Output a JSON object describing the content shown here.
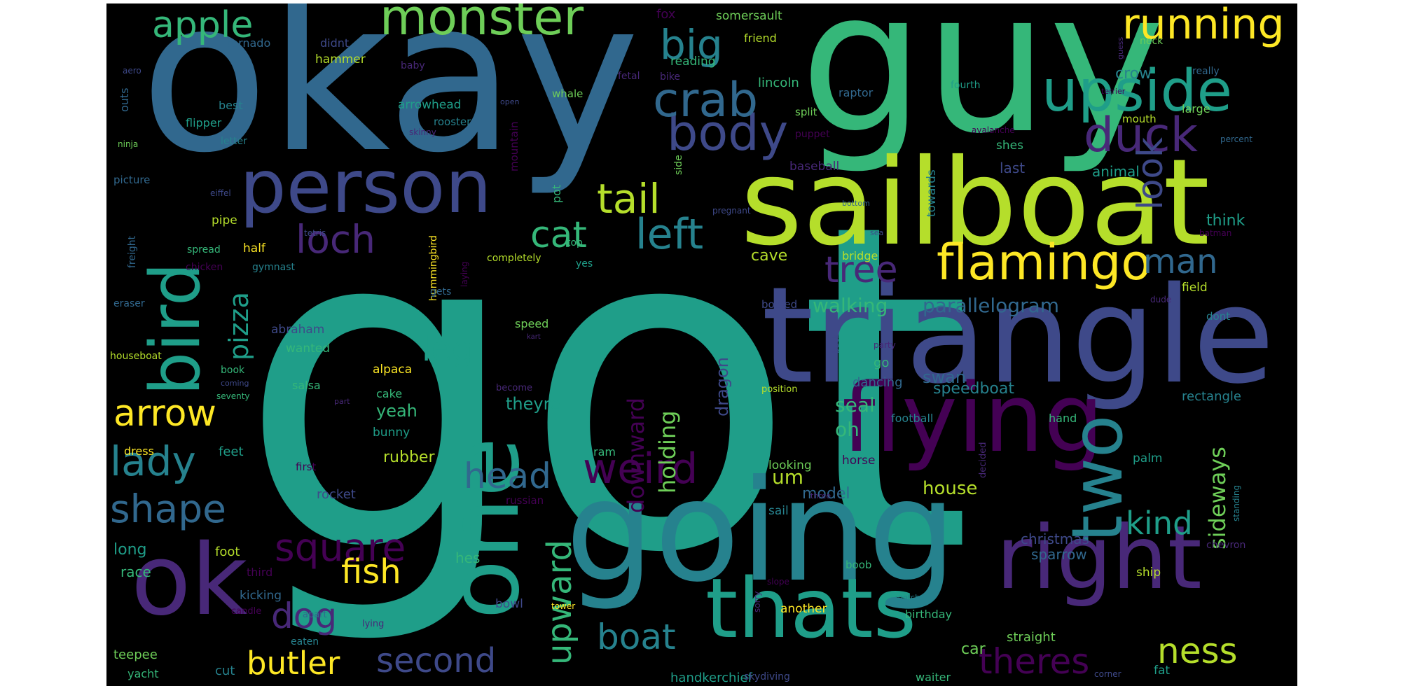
{
  "cloud": {
    "background": "#000000",
    "palette": [
      "#440154",
      "#482878",
      "#3e4989",
      "#31688e",
      "#26828e",
      "#1f9e89",
      "#35b779",
      "#6ece58",
      "#b5de2b",
      "#fde725"
    ],
    "words": [
      {
        "text": "got",
        "color": 5
      },
      {
        "text": "okay",
        "color": 3
      },
      {
        "text": "guy",
        "color": 6
      },
      {
        "text": "sailboat",
        "color": 8
      },
      {
        "text": "triangle",
        "color": 2
      },
      {
        "text": "going",
        "color": 4
      },
      {
        "text": "person",
        "color": 2
      },
      {
        "text": "flying",
        "color": 0
      },
      {
        "text": "thats",
        "color": 5
      },
      {
        "text": "right",
        "color": 1
      },
      {
        "text": "ok",
        "color": 1
      },
      {
        "text": "one",
        "color": 5
      },
      {
        "text": "two",
        "color": 4
      },
      {
        "text": "bird",
        "color": 5
      },
      {
        "text": "monster",
        "color": 7
      },
      {
        "text": "upside",
        "color": 5
      },
      {
        "text": "running",
        "color": 9
      },
      {
        "text": "flamingo",
        "color": 9
      },
      {
        "text": "body",
        "color": 2
      },
      {
        "text": "duck",
        "color": 1
      },
      {
        "text": "crab",
        "color": 3
      },
      {
        "text": "big",
        "color": 4
      },
      {
        "text": "apple",
        "color": 6
      },
      {
        "text": "look",
        "color": 2
      },
      {
        "text": "tail",
        "color": 8
      },
      {
        "text": "left",
        "color": 4
      },
      {
        "text": "cat",
        "color": 6
      },
      {
        "text": "loch",
        "color": 1
      },
      {
        "text": "tree",
        "color": 1
      },
      {
        "text": "man",
        "color": 3
      },
      {
        "text": "arrow",
        "color": 9
      },
      {
        "text": "lady",
        "color": 4
      },
      {
        "text": "shape",
        "color": 3
      },
      {
        "text": "square",
        "color": 0
      },
      {
        "text": "pizza",
        "color": 5
      },
      {
        "text": "weird",
        "color": 0
      },
      {
        "text": "head",
        "color": 3
      },
      {
        "text": "leg",
        "color": 5
      },
      {
        "text": "dog",
        "color": 1
      },
      {
        "text": "fish",
        "color": 9
      },
      {
        "text": "butler",
        "color": 9
      },
      {
        "text": "boat",
        "color": 4
      },
      {
        "text": "second",
        "color": 2
      },
      {
        "text": "theres",
        "color": 0
      },
      {
        "text": "ness",
        "color": 8
      },
      {
        "text": "kind",
        "color": 5
      },
      {
        "text": "sideways",
        "color": 7
      },
      {
        "text": "upward",
        "color": 6
      },
      {
        "text": "downward",
        "color": 0
      },
      {
        "text": "holding",
        "color": 7
      },
      {
        "text": "parallelogram",
        "color": 3
      },
      {
        "text": "walking",
        "color": 6
      },
      {
        "text": "seal",
        "color": 6
      },
      {
        "text": "oh",
        "color": 6
      },
      {
        "text": "um",
        "color": 8
      },
      {
        "text": "house",
        "color": 8
      },
      {
        "text": "model",
        "color": 3
      },
      {
        "text": "dragon",
        "color": 2
      },
      {
        "text": "speedboat",
        "color": 4
      },
      {
        "text": "car",
        "color": 7
      },
      {
        "text": "swan",
        "color": 3
      },
      {
        "text": "last",
        "color": 2
      },
      {
        "text": "animal",
        "color": 5
      },
      {
        "text": "crow",
        "color": 4
      },
      {
        "text": "think",
        "color": 5
      },
      {
        "text": "rectangle",
        "color": 4
      },
      {
        "text": "sparrow",
        "color": 3
      },
      {
        "text": "christmas",
        "color": 2
      },
      {
        "text": "straight",
        "color": 7
      },
      {
        "text": "handkerchief",
        "color": 5
      },
      {
        "text": "fox",
        "color": 0
      },
      {
        "text": "somersault",
        "color": 7
      },
      {
        "text": "raptor",
        "color": 3
      },
      {
        "text": "friend",
        "color": 8
      },
      {
        "text": "reading",
        "color": 6
      },
      {
        "text": "hammer",
        "color": 8
      },
      {
        "text": "didnt",
        "color": 2
      },
      {
        "text": "tornado",
        "color": 3
      },
      {
        "text": "baby",
        "color": 1
      },
      {
        "text": "fetal",
        "color": 1
      },
      {
        "text": "bike",
        "color": 1
      },
      {
        "text": "neck",
        "color": 7
      },
      {
        "text": "really",
        "color": 3
      },
      {
        "text": "guess",
        "color": 1
      },
      {
        "text": "lincoln",
        "color": 6
      },
      {
        "text": "split",
        "color": 7
      },
      {
        "text": "puppet",
        "color": 0
      },
      {
        "text": "whale",
        "color": 7
      },
      {
        "text": "arrowhead",
        "color": 5
      },
      {
        "text": "rooster",
        "color": 4
      },
      {
        "text": "open",
        "color": 2
      },
      {
        "text": "mountain",
        "color": 0
      },
      {
        "text": "fourth",
        "color": 5
      },
      {
        "text": "mouth",
        "color": 8
      },
      {
        "text": "large",
        "color": 7
      },
      {
        "text": "terrier",
        "color": 0
      },
      {
        "text": "percent",
        "color": 3
      },
      {
        "text": "avalanche",
        "color": 0
      },
      {
        "text": "shes",
        "color": 6
      },
      {
        "text": "towards",
        "color": 4
      },
      {
        "text": "baseball",
        "color": 1
      },
      {
        "text": "bottom",
        "color": 3
      },
      {
        "text": "pregnant",
        "color": 2
      },
      {
        "text": "pot",
        "color": 6
      },
      {
        "text": "side",
        "color": 7
      },
      {
        "text": "best",
        "color": 4
      },
      {
        "text": "flipper",
        "color": 5
      },
      {
        "text": "skinny",
        "color": 1
      },
      {
        "text": "letter",
        "color": 4
      },
      {
        "text": "ninja",
        "color": 7
      },
      {
        "text": "picture",
        "color": 3
      },
      {
        "text": "eiffel",
        "color": 2
      },
      {
        "text": "outs",
        "color": 3
      },
      {
        "text": "aero",
        "color": 2
      },
      {
        "text": "tetris",
        "color": 2
      },
      {
        "text": "pipe",
        "color": 8
      },
      {
        "text": "spread",
        "color": 6
      },
      {
        "text": "chicken",
        "color": 0
      },
      {
        "text": "gymnast",
        "color": 4
      },
      {
        "text": "half",
        "color": 9
      },
      {
        "text": "freight",
        "color": 3
      },
      {
        "text": "eraser",
        "color": 3
      },
      {
        "text": "hummingbird",
        "color": 9
      },
      {
        "text": "laying",
        "color": 0
      },
      {
        "text": "gets",
        "color": 3
      },
      {
        "text": "completely",
        "color": 8
      },
      {
        "text": "top",
        "color": 6
      },
      {
        "text": "yes",
        "color": 5
      },
      {
        "text": "abraham",
        "color": 2
      },
      {
        "text": "wanted",
        "color": 6
      },
      {
        "text": "speed",
        "color": 7
      },
      {
        "text": "kart",
        "color": 1
      },
      {
        "text": "houseboat",
        "color": 8
      },
      {
        "text": "alpaca",
        "color": 9
      },
      {
        "text": "book",
        "color": 6
      },
      {
        "text": "coming",
        "color": 2
      },
      {
        "text": "seventy",
        "color": 6
      },
      {
        "text": "cake",
        "color": 6
      },
      {
        "text": "become",
        "color": 1
      },
      {
        "text": "salsa",
        "color": 6
      },
      {
        "text": "part",
        "color": 1
      },
      {
        "text": "yeah",
        "color": 6
      },
      {
        "text": "theyre",
        "color": 5
      },
      {
        "text": "bunny",
        "color": 5
      },
      {
        "text": "dress",
        "color": 9
      },
      {
        "text": "feet",
        "color": 5
      },
      {
        "text": "rubber",
        "color": 8
      },
      {
        "text": "ram",
        "color": 6
      },
      {
        "text": "first",
        "color": 0
      },
      {
        "text": "rocket",
        "color": 2
      },
      {
        "text": "russian",
        "color": 0
      },
      {
        "text": "long",
        "color": 5
      },
      {
        "text": "foot",
        "color": 8
      },
      {
        "text": "race",
        "color": 6
      },
      {
        "text": "third",
        "color": 0
      },
      {
        "text": "hes",
        "color": 6
      },
      {
        "text": "bowl",
        "color": 2
      },
      {
        "text": "kicking",
        "color": 3
      },
      {
        "text": "candle",
        "color": 0
      },
      {
        "text": "apart",
        "color": 3
      },
      {
        "text": "lying",
        "color": 1
      },
      {
        "text": "eaten",
        "color": 4
      },
      {
        "text": "teepee",
        "color": 7
      },
      {
        "text": "yacht",
        "color": 6
      },
      {
        "text": "cut",
        "color": 4
      },
      {
        "text": "tower",
        "color": 9
      },
      {
        "text": "sorry",
        "color": 1
      },
      {
        "text": "skydiving",
        "color": 2
      },
      {
        "text": "waiter",
        "color": 6
      },
      {
        "text": "another",
        "color": 9
      },
      {
        "text": "birthday",
        "color": 6
      },
      {
        "text": "slope",
        "color": 0
      },
      {
        "text": "gotcha",
        "color": 4
      },
      {
        "text": "boob",
        "color": 6
      },
      {
        "text": "sail",
        "color": 4
      },
      {
        "text": "looking",
        "color": 7
      },
      {
        "text": "three",
        "color": 1
      },
      {
        "text": "decided",
        "color": 1
      },
      {
        "text": "standing",
        "color": 4
      },
      {
        "text": "palm",
        "color": 5
      },
      {
        "text": "fat",
        "color": 5
      },
      {
        "text": "corner",
        "color": 2
      },
      {
        "text": "chevron",
        "color": 1
      },
      {
        "text": "ship",
        "color": 8
      },
      {
        "text": "football",
        "color": 4
      },
      {
        "text": "hand",
        "color": 6
      },
      {
        "text": "horse",
        "color": 0
      },
      {
        "text": "position",
        "color": 8
      },
      {
        "text": "back",
        "color": 2
      },
      {
        "text": "party",
        "color": 1
      },
      {
        "text": "dancing",
        "color": 3
      },
      {
        "text": "go",
        "color": 6
      },
      {
        "text": "bodied",
        "color": 2
      },
      {
        "text": "cave",
        "color": 8
      },
      {
        "text": "bridge",
        "color": 8
      },
      {
        "text": "sea",
        "color": 2
      },
      {
        "text": "batman",
        "color": 0
      },
      {
        "text": "dude",
        "color": 1
      },
      {
        "text": "field",
        "color": 8
      },
      {
        "text": "dont",
        "color": 4
      }
    ]
  }
}
